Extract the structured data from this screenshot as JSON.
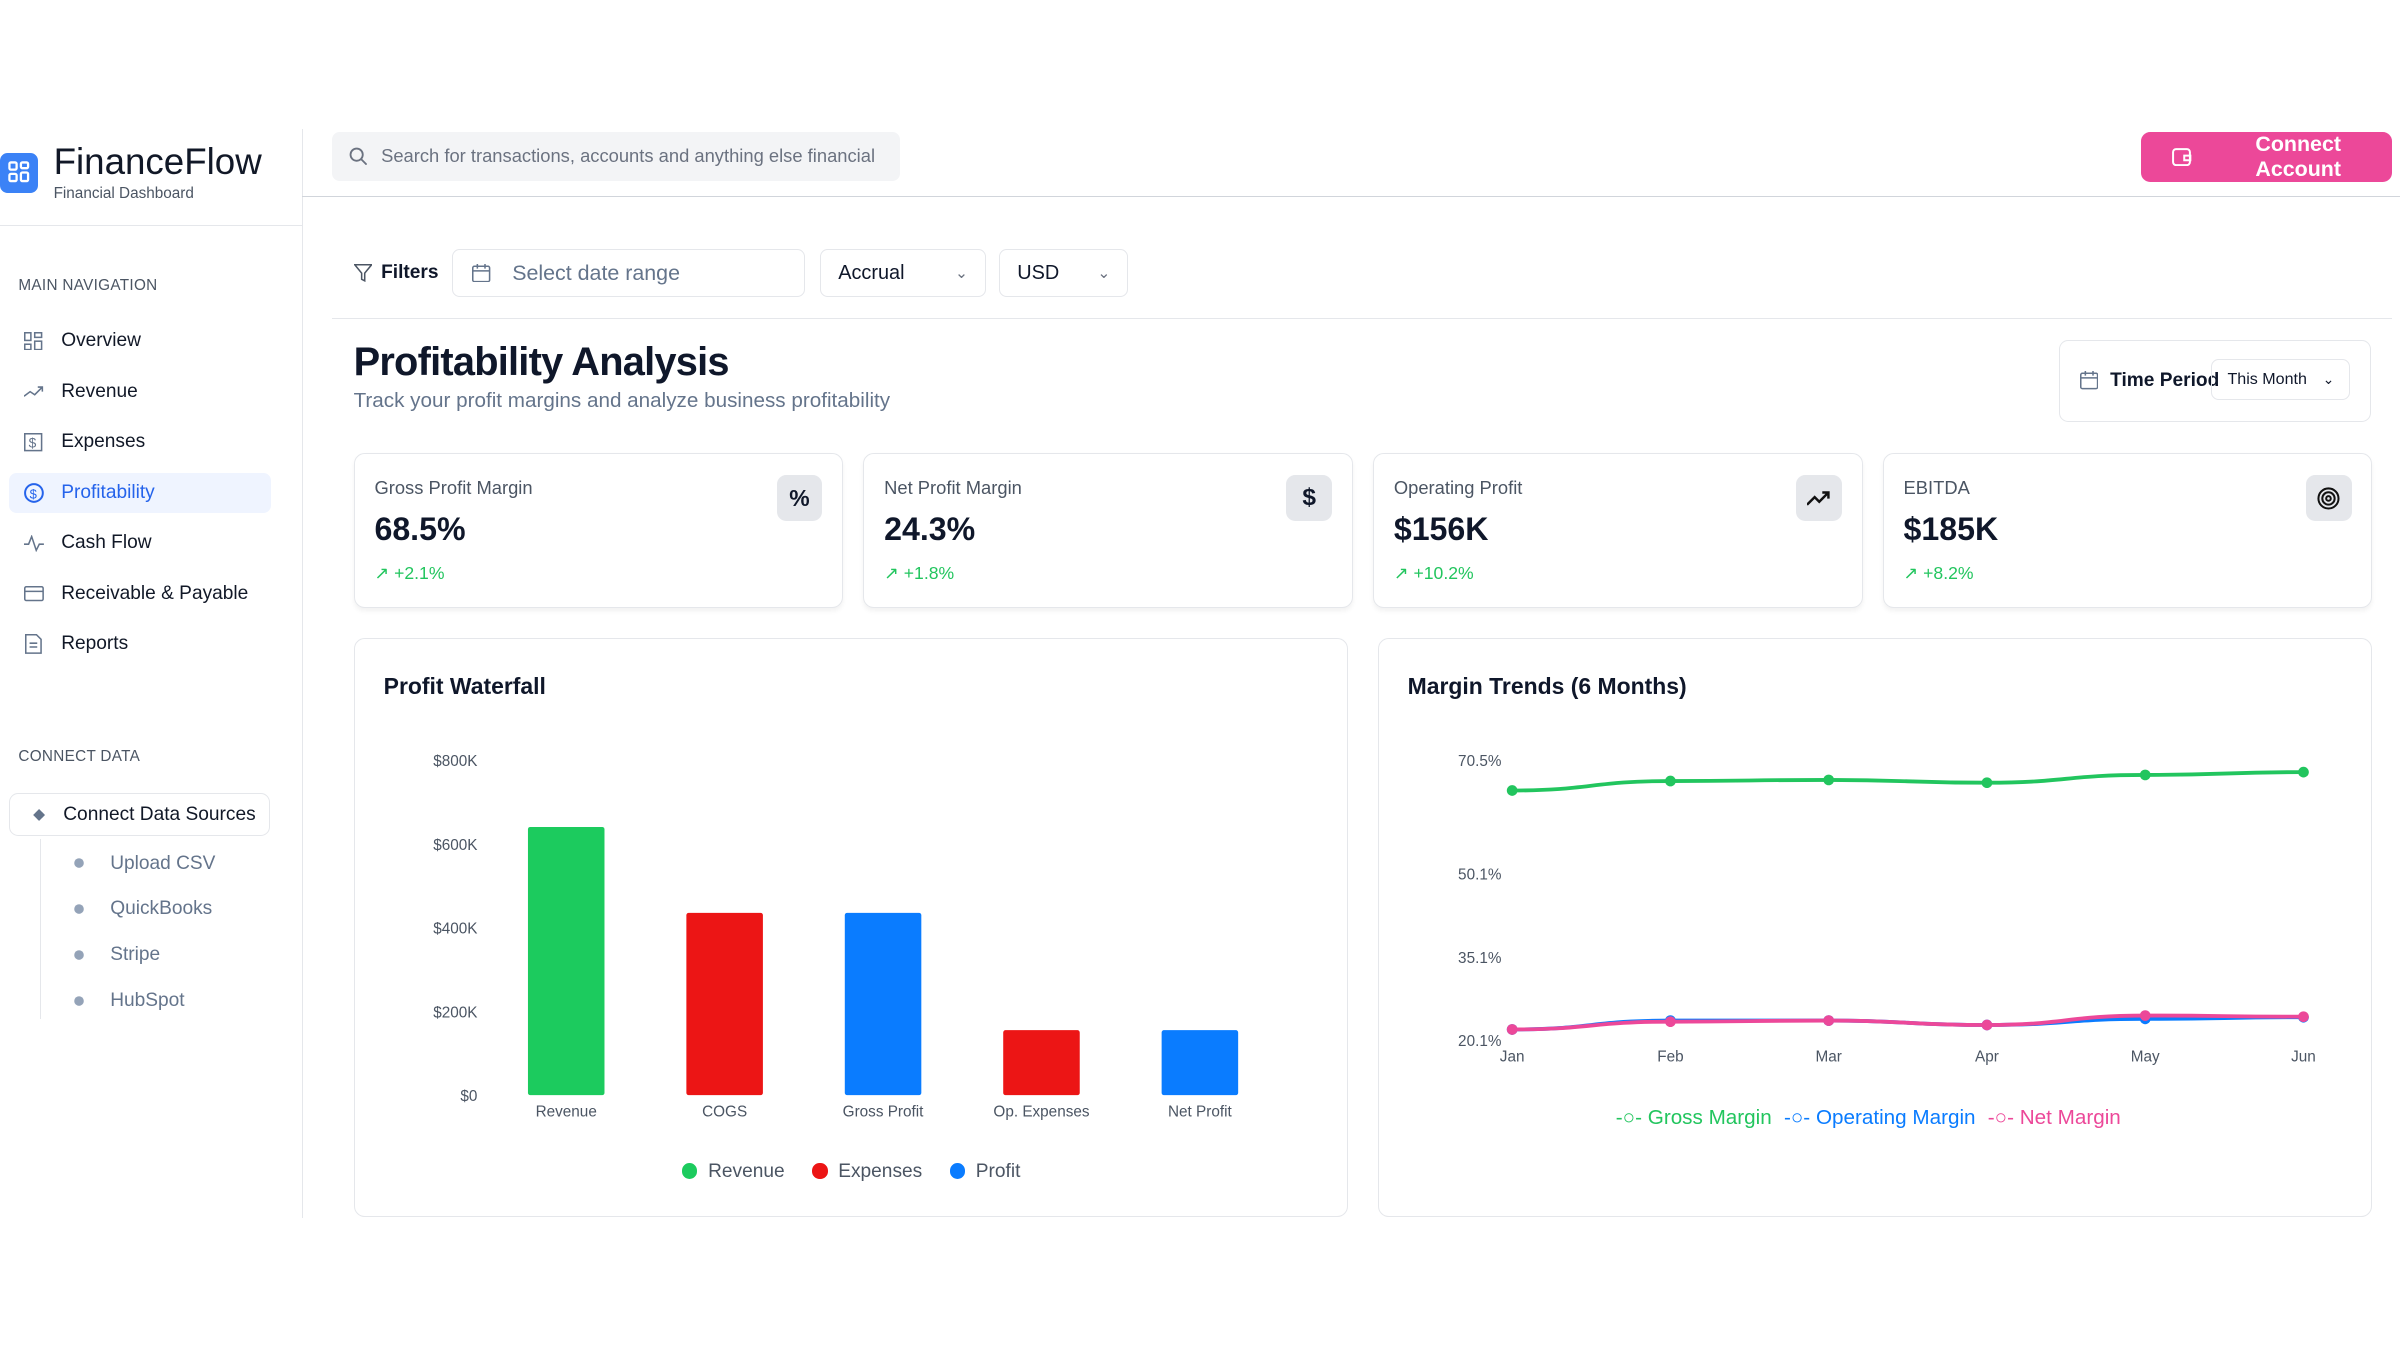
{
  "brand": {
    "name": "FinanceFlow",
    "subtitle": "Financial Dashboard",
    "accent": "#3b82f6"
  },
  "sidebar": {
    "main_label": "MAIN NAVIGATION",
    "items": [
      {
        "label": "Overview",
        "icon": "grid-icon"
      },
      {
        "label": "Revenue",
        "icon": "trending-up-icon"
      },
      {
        "label": "Expenses",
        "icon": "receipt-icon"
      },
      {
        "label": "Profitability",
        "icon": "dollar-circle-icon",
        "active": true
      },
      {
        "label": "Cash Flow",
        "icon": "activity-icon"
      },
      {
        "label": "Receivable & Payable",
        "icon": "credit-card-icon"
      },
      {
        "label": "Reports",
        "icon": "file-text-icon"
      }
    ],
    "connect_label": "CONNECT DATA",
    "connect_button": "Connect Data Sources",
    "sources": [
      "Upload CSV",
      "QuickBooks",
      "Stripe",
      "HubSpot"
    ]
  },
  "header": {
    "search_placeholder": "Search for transactions, accounts and anything else financial",
    "connect_button": "Connect Account",
    "connect_color": "#ec4899"
  },
  "filters": {
    "label": "Filters",
    "date_placeholder": "Select date range",
    "basis": "Accrual",
    "currency": "USD"
  },
  "page": {
    "title": "Profitability Analysis",
    "subtitle": "Track your profit margins and analyze business profitability",
    "time_period_label": "Time Period",
    "time_period_value": "This Month"
  },
  "kpis": [
    {
      "label": "Gross Profit Margin",
      "value": "68.5%",
      "change": "+2.1%",
      "icon": "percent-icon"
    },
    {
      "label": "Net Profit Margin",
      "value": "24.3%",
      "change": "+1.8%",
      "icon": "dollar-icon"
    },
    {
      "label": "Operating Profit",
      "value": "$156K",
      "change": "+10.2%",
      "icon": "trending-up-icon"
    },
    {
      "label": "EBITDA",
      "value": "$185K",
      "change": "+8.2%",
      "icon": "target-icon"
    }
  ],
  "chart_data": [
    {
      "type": "bar",
      "title": "Profit Waterfall",
      "categories": [
        "Revenue",
        "COGS",
        "Gross Profit",
        "Op. Expenses",
        "Net Profit"
      ],
      "values": [
        640000,
        435000,
        435000,
        155000,
        155000
      ],
      "bar_groups": [
        "Revenue",
        "Expenses",
        "Profit",
        "Expenses",
        "Profit"
      ],
      "ylim": [
        0,
        800000
      ],
      "yticks": [
        0,
        200000,
        400000,
        600000,
        800000
      ],
      "ytick_labels": [
        "$0",
        "$200K",
        "$400K",
        "$600K",
        "$800K"
      ],
      "legend": [
        {
          "name": "Revenue",
          "color": "#1ccb5e"
        },
        {
          "name": "Expenses",
          "color": "#ec1515"
        },
        {
          "name": "Profit",
          "color": "#0a7cff"
        }
      ],
      "legend_position": "bottom",
      "grid": false
    },
    {
      "type": "line",
      "title": "Margin Trends (6 Months)",
      "x": [
        "Jan",
        "Feb",
        "Mar",
        "Apr",
        "May",
        "Jun"
      ],
      "ylim": [
        20.1,
        70.5
      ],
      "yticks": [
        20.1,
        35.1,
        50.1,
        70.5
      ],
      "ytick_labels": [
        "20.1%",
        "35.1%",
        "50.1%",
        "70.5%"
      ],
      "series": [
        {
          "name": "Gross Margin",
          "color": "#22c55e",
          "values": [
            65.0,
            66.7,
            66.9,
            66.4,
            67.8,
            68.3
          ]
        },
        {
          "name": "Operating Margin",
          "color": "#0a7cff",
          "values": [
            22.0,
            23.6,
            23.6,
            22.8,
            23.9,
            24.2
          ]
        },
        {
          "name": "Net Margin",
          "color": "#ec4899",
          "values": [
            22.0,
            23.4,
            23.6,
            22.8,
            24.5,
            24.3
          ]
        }
      ],
      "legend_position": "bottom",
      "grid": false
    }
  ]
}
